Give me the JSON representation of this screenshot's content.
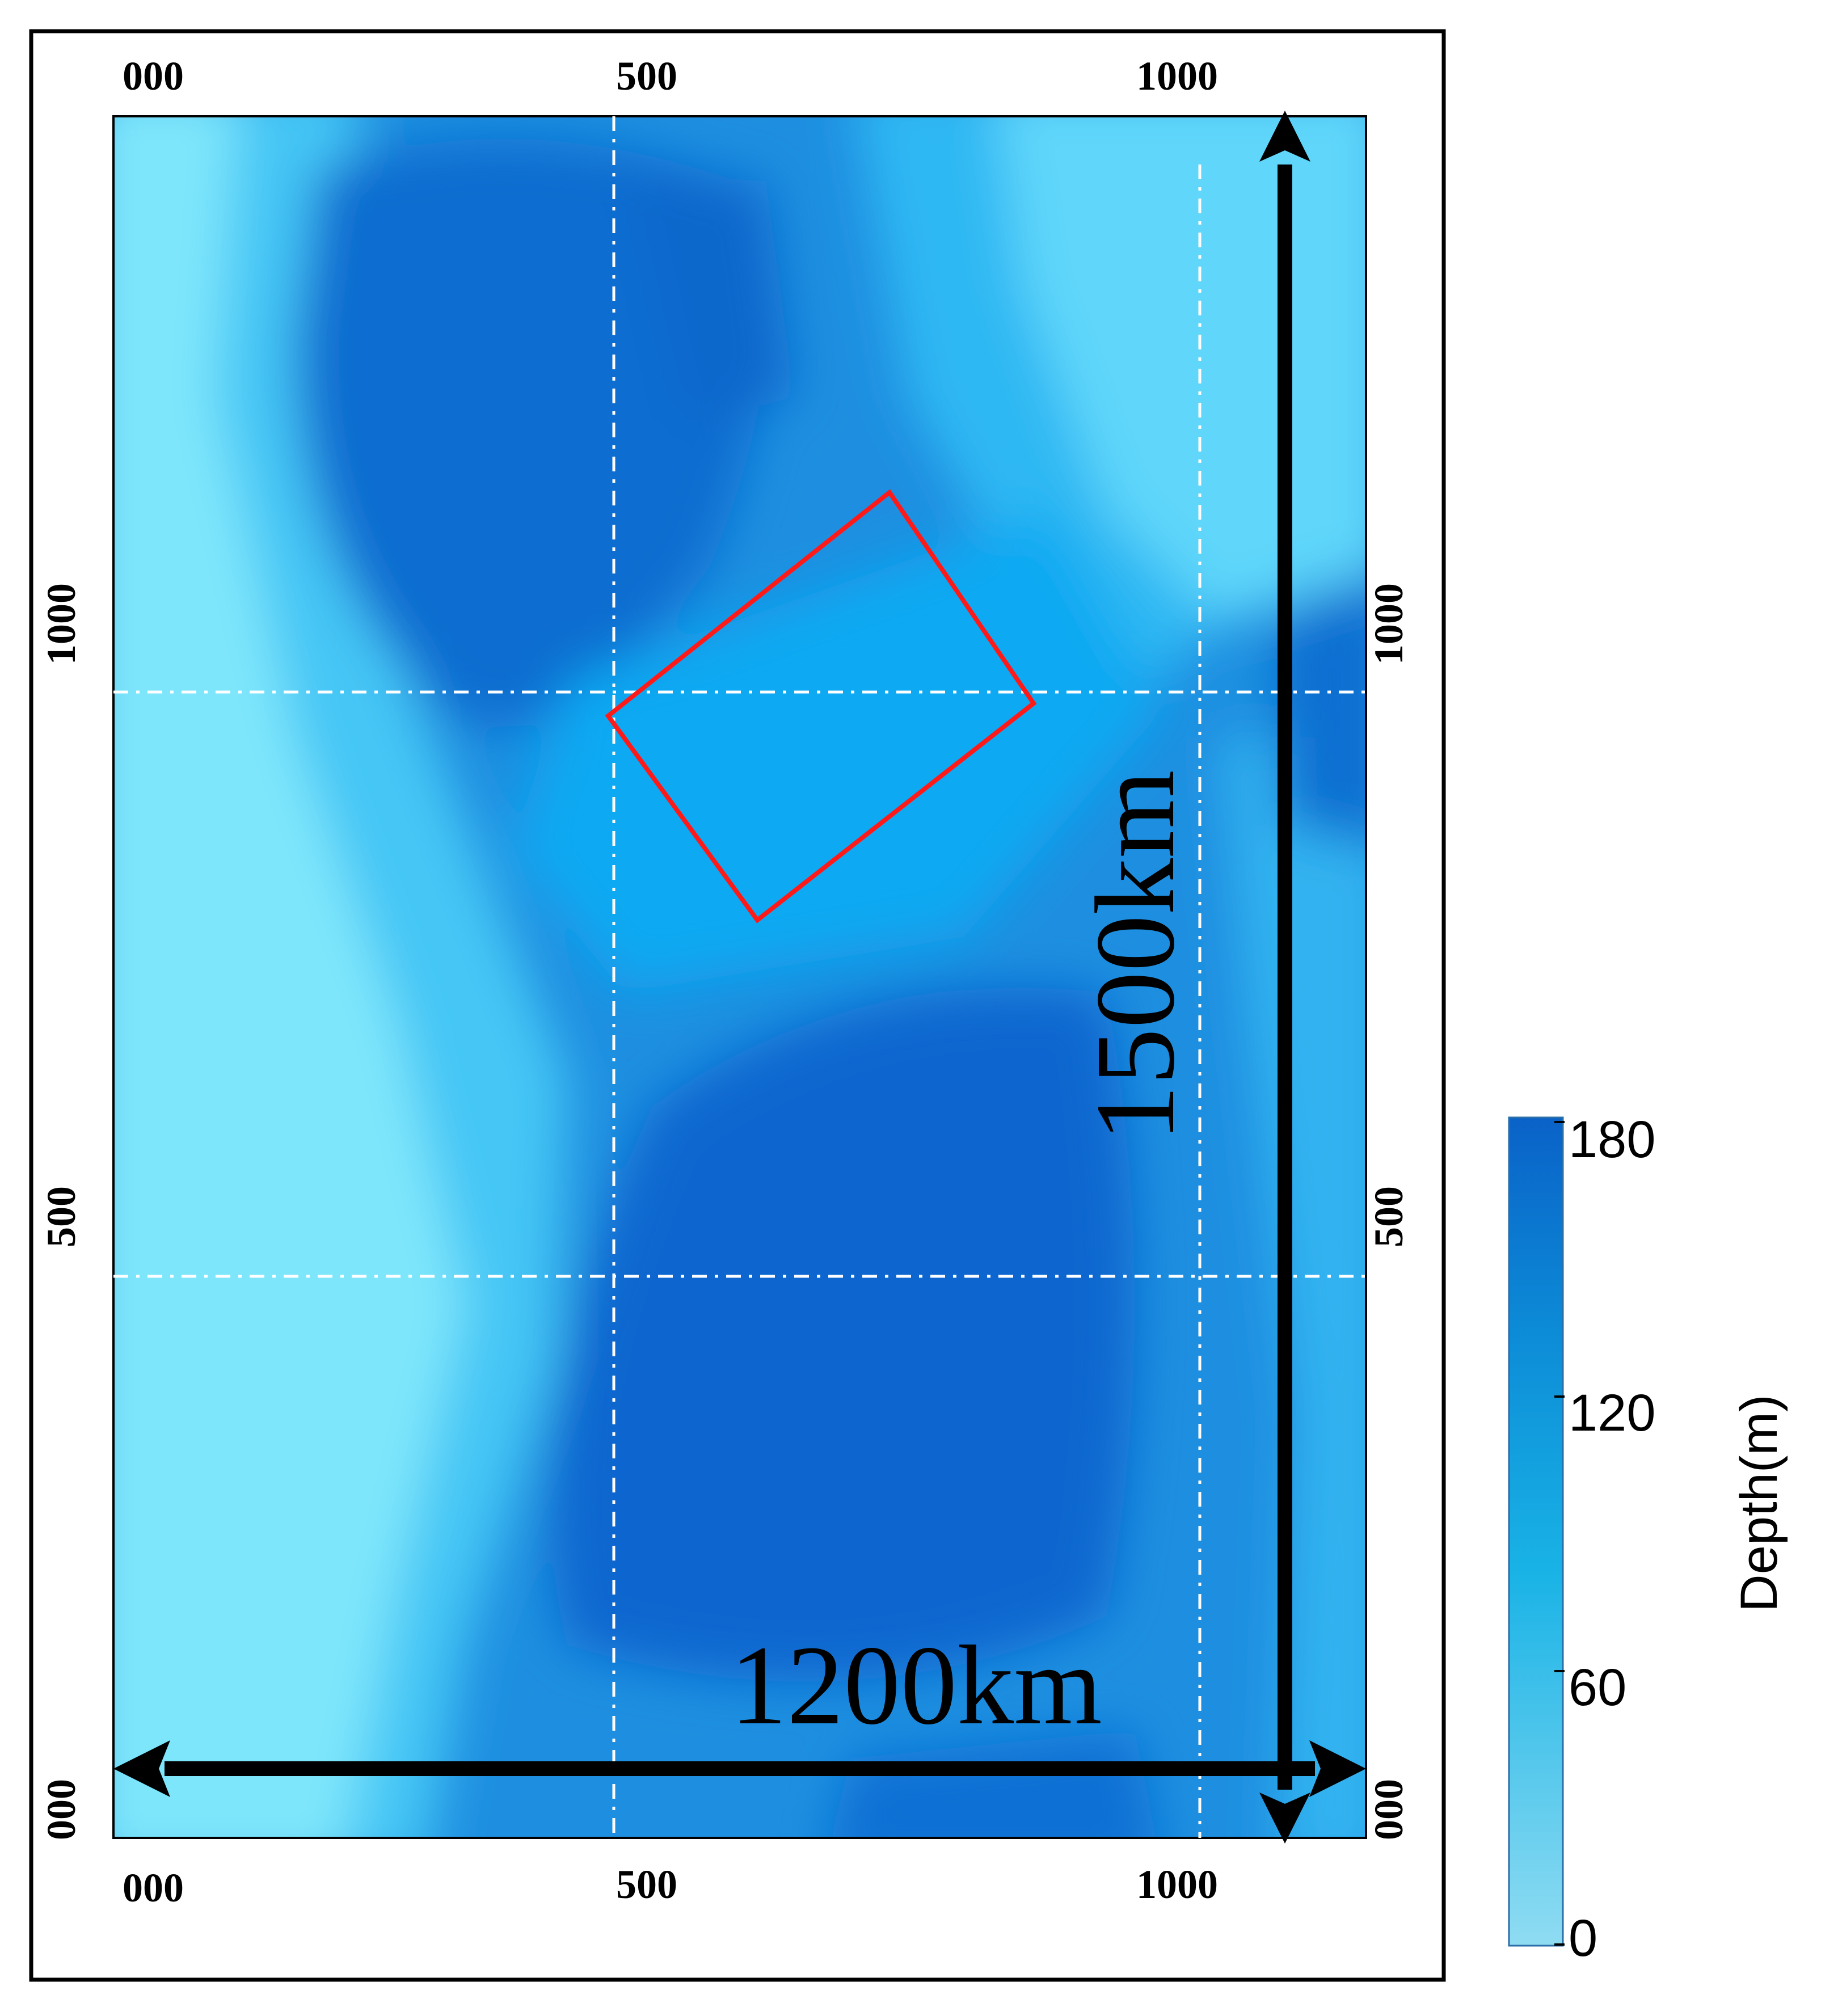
{
  "map": {
    "top_ticks": [
      "000",
      "500",
      "1000"
    ],
    "bottom_ticks": [
      "000",
      "500",
      "1000"
    ],
    "left_ticks": [
      "1000",
      "500",
      "000"
    ],
    "right_ticks": [
      "1000",
      "500",
      "000"
    ],
    "horizontal_scale_label": "1200km",
    "vertical_scale_label": "1500km",
    "study_area_outline_color": "#ff1a1a",
    "gridline_style": "dash-dot white"
  },
  "colorbar": {
    "title": "Depth(m)",
    "ticks": [
      "180",
      "120",
      "60",
      "0"
    ],
    "range_m": [
      0,
      180
    ],
    "colors": {
      "shallow": "#8fdcf2",
      "mid": "#0ea6dd",
      "deep": "#0a62c8"
    }
  }
}
